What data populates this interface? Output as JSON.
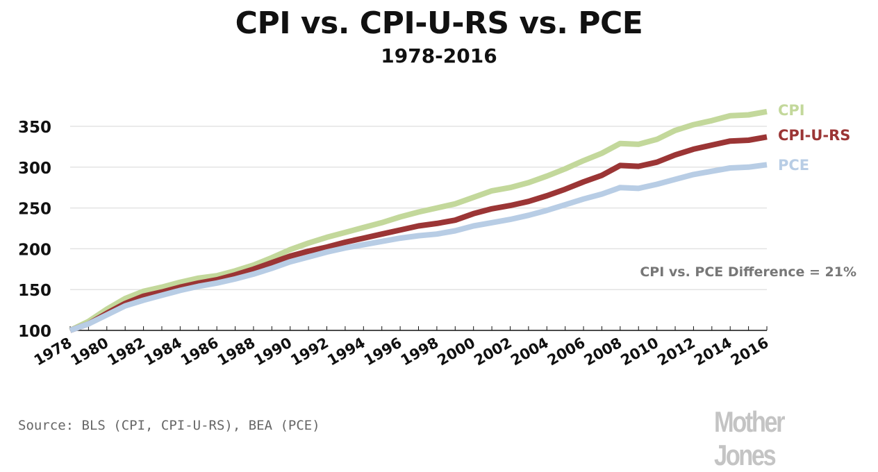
{
  "chart_data": {
    "type": "line",
    "title": "CPI vs. CPI-U-RS vs. PCE",
    "subtitle": "1978-2016",
    "xlabel": "",
    "ylabel": "",
    "ylim": [
      100,
      375
    ],
    "yticks": [
      100,
      150,
      200,
      250,
      300,
      350
    ],
    "xlim": [
      1978,
      2016
    ],
    "xtick_labels": [
      "1978",
      "1980",
      "1982",
      "1984",
      "1986",
      "1988",
      "1990",
      "1992",
      "1994",
      "1996",
      "1998",
      "2000",
      "2002",
      "2004",
      "2006",
      "2008",
      "2010",
      "2012",
      "2014",
      "2016"
    ],
    "grid": "horizontal",
    "legend_placement": "right, inline at line ends",
    "x": [
      1978,
      1979,
      1980,
      1981,
      1982,
      1983,
      1984,
      1985,
      1986,
      1987,
      1988,
      1989,
      1990,
      1991,
      1992,
      1993,
      1994,
      1995,
      1996,
      1997,
      1998,
      1999,
      2000,
      2001,
      2002,
      2003,
      2004,
      2005,
      2006,
      2007,
      2008,
      2009,
      2010,
      2011,
      2012,
      2013,
      2014,
      2015,
      2016
    ],
    "series": [
      {
        "name": "CPI",
        "color": "#c3d89b",
        "values": [
          100,
          111,
          126,
          139,
          148,
          153,
          159,
          164,
          167,
          173,
          180,
          189,
          199,
          207,
          214,
          220,
          226,
          232,
          239,
          245,
          250,
          255,
          263,
          271,
          275,
          281,
          289,
          298,
          308,
          317,
          329,
          328,
          334,
          345,
          352,
          357,
          363,
          364,
          368
        ]
      },
      {
        "name": "CPI-U-RS",
        "color": "#9b3535",
        "values": [
          100,
          108,
          121,
          133,
          142,
          147,
          153,
          158,
          162,
          168,
          175,
          183,
          191,
          197,
          202,
          208,
          213,
          218,
          223,
          228,
          231,
          235,
          243,
          249,
          253,
          258,
          265,
          273,
          282,
          290,
          302,
          301,
          306,
          315,
          322,
          327,
          332,
          333,
          337
        ]
      },
      {
        "name": "PCE",
        "color": "#b8cde5",
        "values": [
          100,
          108,
          119,
          130,
          137,
          143,
          149,
          154,
          158,
          163,
          169,
          176,
          184,
          190,
          196,
          201,
          205,
          209,
          213,
          216,
          218,
          222,
          228,
          232,
          236,
          241,
          247,
          254,
          261,
          267,
          275,
          274,
          279,
          285,
          291,
          295,
          299,
          300,
          303
        ]
      }
    ],
    "annotation": "CPI vs. PCE Difference = 21%",
    "source": "Source: BLS (CPI, CPI-U-RS), BEA (PCE)",
    "logo": "Mother Jones"
  }
}
